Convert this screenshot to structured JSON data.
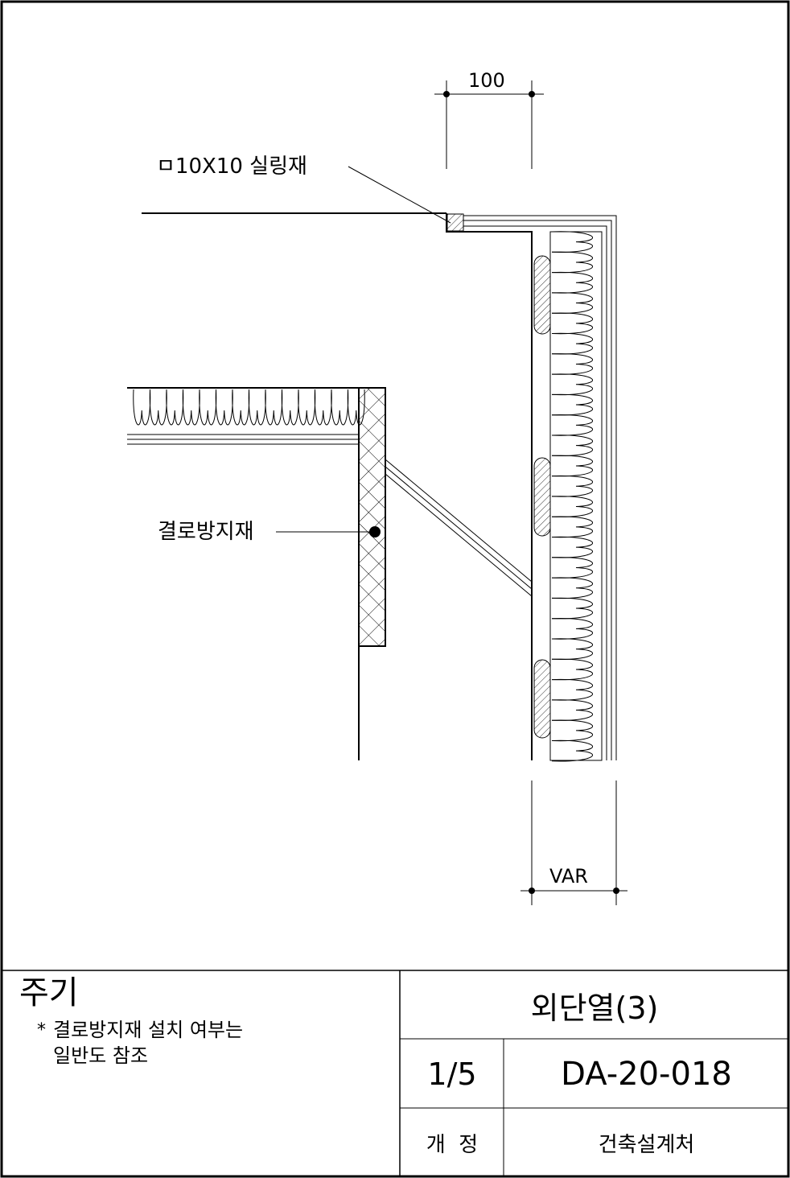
{
  "drawing": {
    "dim_top": "100",
    "dim_bottom": "VAR",
    "callout_sealant": "ㅁ10X10 실링재",
    "callout_vapor_barrier": "결로방지재"
  },
  "title_block": {
    "notes_heading": "주기",
    "notes_marker": "*",
    "notes_line1": "결로방지재 설치 여부는",
    "notes_line2": "일반도 참조",
    "drawing_title": "외단열(3)",
    "scale": "1/5",
    "drawing_number": "DA-20-018",
    "revision_label": "개  정",
    "department": "건축설계처"
  }
}
